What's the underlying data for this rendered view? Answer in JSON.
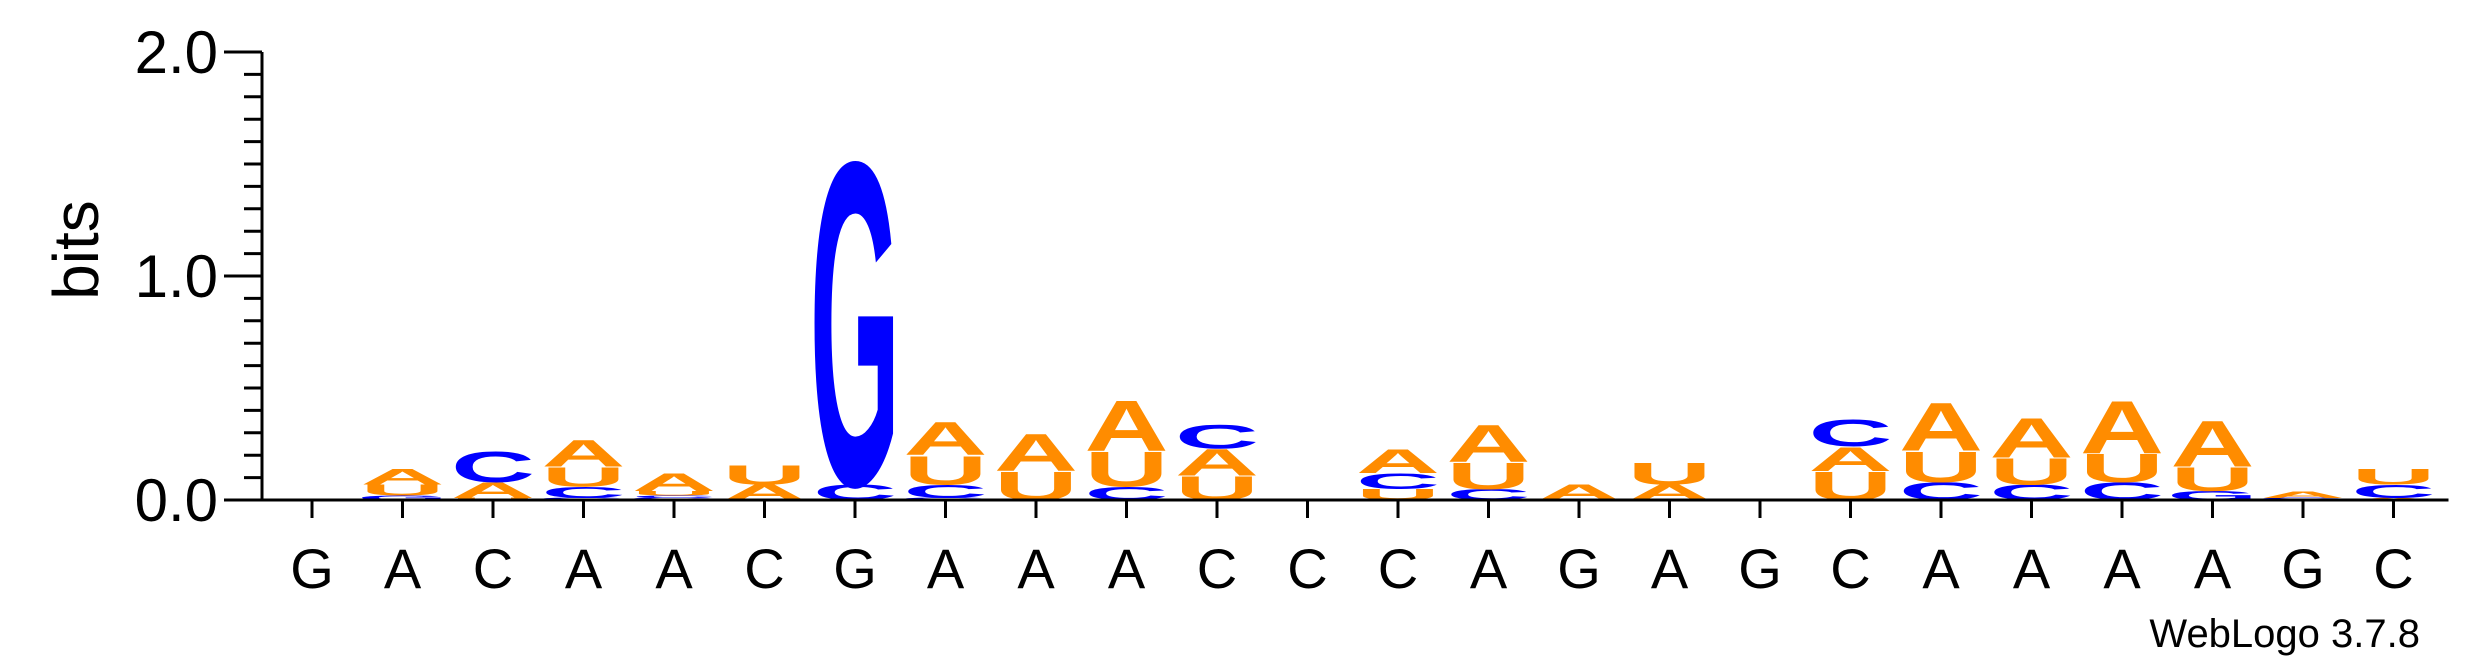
{
  "chart_data": {
    "type": "sequence-logo",
    "ylabel": "bits",
    "ylim": [
      0,
      2.0
    ],
    "yticks": [
      "0.0",
      "1.0",
      "2.0"
    ],
    "colors": {
      "A": "#ff8c00",
      "U": "#ff8c00",
      "C": "#0000ff",
      "G": "#0000ff"
    },
    "positions": [
      {
        "label": "G",
        "stack": []
      },
      {
        "label": "A",
        "stack": [
          [
            "G",
            0.02
          ],
          [
            "U",
            0.05
          ],
          [
            "A",
            0.07
          ]
        ]
      },
      {
        "label": "C",
        "stack": [
          [
            "U",
            0.01
          ],
          [
            "A",
            0.07
          ],
          [
            "C",
            0.14
          ]
        ]
      },
      {
        "label": "A",
        "stack": [
          [
            "G",
            0.01
          ],
          [
            "C",
            0.05
          ],
          [
            "U",
            0.09
          ],
          [
            "A",
            0.12
          ]
        ]
      },
      {
        "label": "A",
        "stack": [
          [
            "G",
            0.01
          ],
          [
            "C",
            0.01
          ],
          [
            "U",
            0.02
          ],
          [
            "A",
            0.08
          ]
        ]
      },
      {
        "label": "C",
        "stack": [
          [
            "A",
            0.07
          ],
          [
            "U",
            0.09
          ]
        ]
      },
      {
        "label": "G",
        "stack": [
          [
            "C",
            0.07
          ],
          [
            "G",
            1.48
          ]
        ]
      },
      {
        "label": "A",
        "stack": [
          [
            "G",
            0.01
          ],
          [
            "C",
            0.06
          ],
          [
            "U",
            0.13
          ],
          [
            "A",
            0.15
          ]
        ]
      },
      {
        "label": "A",
        "stack": [
          [
            "U",
            0.13
          ],
          [
            "A",
            0.17
          ]
        ]
      },
      {
        "label": "A",
        "stack": [
          [
            "C",
            0.06
          ],
          [
            "U",
            0.16
          ],
          [
            "A",
            0.23
          ]
        ]
      },
      {
        "label": "C",
        "stack": [
          [
            "U",
            0.11
          ],
          [
            "A",
            0.12
          ],
          [
            "C",
            0.11
          ]
        ]
      },
      {
        "label": "C",
        "stack": []
      },
      {
        "label": "C",
        "stack": [
          [
            "U",
            0.05
          ],
          [
            "C",
            0.07
          ],
          [
            "A",
            0.11
          ]
        ]
      },
      {
        "label": "A",
        "stack": [
          [
            "C",
            0.05
          ],
          [
            "U",
            0.12
          ],
          [
            "A",
            0.17
          ]
        ]
      },
      {
        "label": "G",
        "stack": [
          [
            "A",
            0.07
          ]
        ]
      },
      {
        "label": "A",
        "stack": [
          [
            "A",
            0.07
          ],
          [
            "U",
            0.1
          ]
        ]
      },
      {
        "label": "G",
        "stack": []
      },
      {
        "label": "C",
        "stack": [
          [
            "U",
            0.13
          ],
          [
            "A",
            0.11
          ],
          [
            "C",
            0.12
          ]
        ]
      },
      {
        "label": "A",
        "stack": [
          [
            "C",
            0.08
          ],
          [
            "U",
            0.14
          ],
          [
            "A",
            0.22
          ]
        ]
      },
      {
        "label": "A",
        "stack": [
          [
            "C",
            0.07
          ],
          [
            "U",
            0.12
          ],
          [
            "A",
            0.18
          ]
        ]
      },
      {
        "label": "A",
        "stack": [
          [
            "C",
            0.08
          ],
          [
            "U",
            0.13
          ],
          [
            "A",
            0.24
          ]
        ]
      },
      {
        "label": "A",
        "stack": [
          [
            "G",
            0.04
          ],
          [
            "U",
            0.11
          ],
          [
            "A",
            0.21
          ]
        ]
      },
      {
        "label": "G",
        "stack": [
          [
            "G",
            0.01
          ],
          [
            "A",
            0.03
          ]
        ]
      },
      {
        "label": "C",
        "stack": [
          [
            "A",
            0.01
          ],
          [
            "C",
            0.06
          ],
          [
            "U",
            0.07
          ]
        ]
      }
    ]
  },
  "footer": {
    "credit": "WebLogo 3.7.8"
  }
}
